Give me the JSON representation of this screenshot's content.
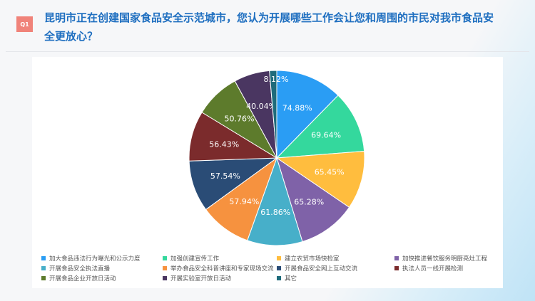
{
  "question": {
    "badge": "Q1",
    "title": "昆明市正在创建国家食品安全示范城市，您认为开展哪些工作会让您和周围的市民对我市食品安全更放心？"
  },
  "chart_data": {
    "type": "pie",
    "title": "",
    "legend_placement": "bottom",
    "categories": [
      "加大食品违法行为曝光和公示力度",
      "加强创建宣传工作",
      "建立农贸市场快检室",
      "加快推进餐饮服务明厨亮灶工程",
      "开展食品安全执法直播",
      "举办食品安全科普讲座和专家现场交流",
      "开展食品安全网上互动交流",
      "执法人员一线开展检测",
      "开展食品企业开放日活动",
      "开展实验室开放日活动",
      "其它"
    ],
    "values": [
      74.88,
      69.64,
      65.45,
      65.28,
      61.86,
      57.94,
      57.54,
      56.43,
      50.76,
      40.04,
      8.12
    ],
    "labels": [
      "74.88%",
      "69.64%",
      "65.45%",
      "65.28%",
      "61.86%",
      "57.94%",
      "57.54%",
      "56.43%",
      "50.76%",
      "40.04%",
      "8.12%"
    ],
    "colors": [
      "#2a9df4",
      "#34d89d",
      "#ffbd3e",
      "#7f62a8",
      "#47afc9",
      "#f6923f",
      "#2a4c76",
      "#7b2b2c",
      "#5d7b2c",
      "#4a3661",
      "#1e6b7b"
    ]
  }
}
